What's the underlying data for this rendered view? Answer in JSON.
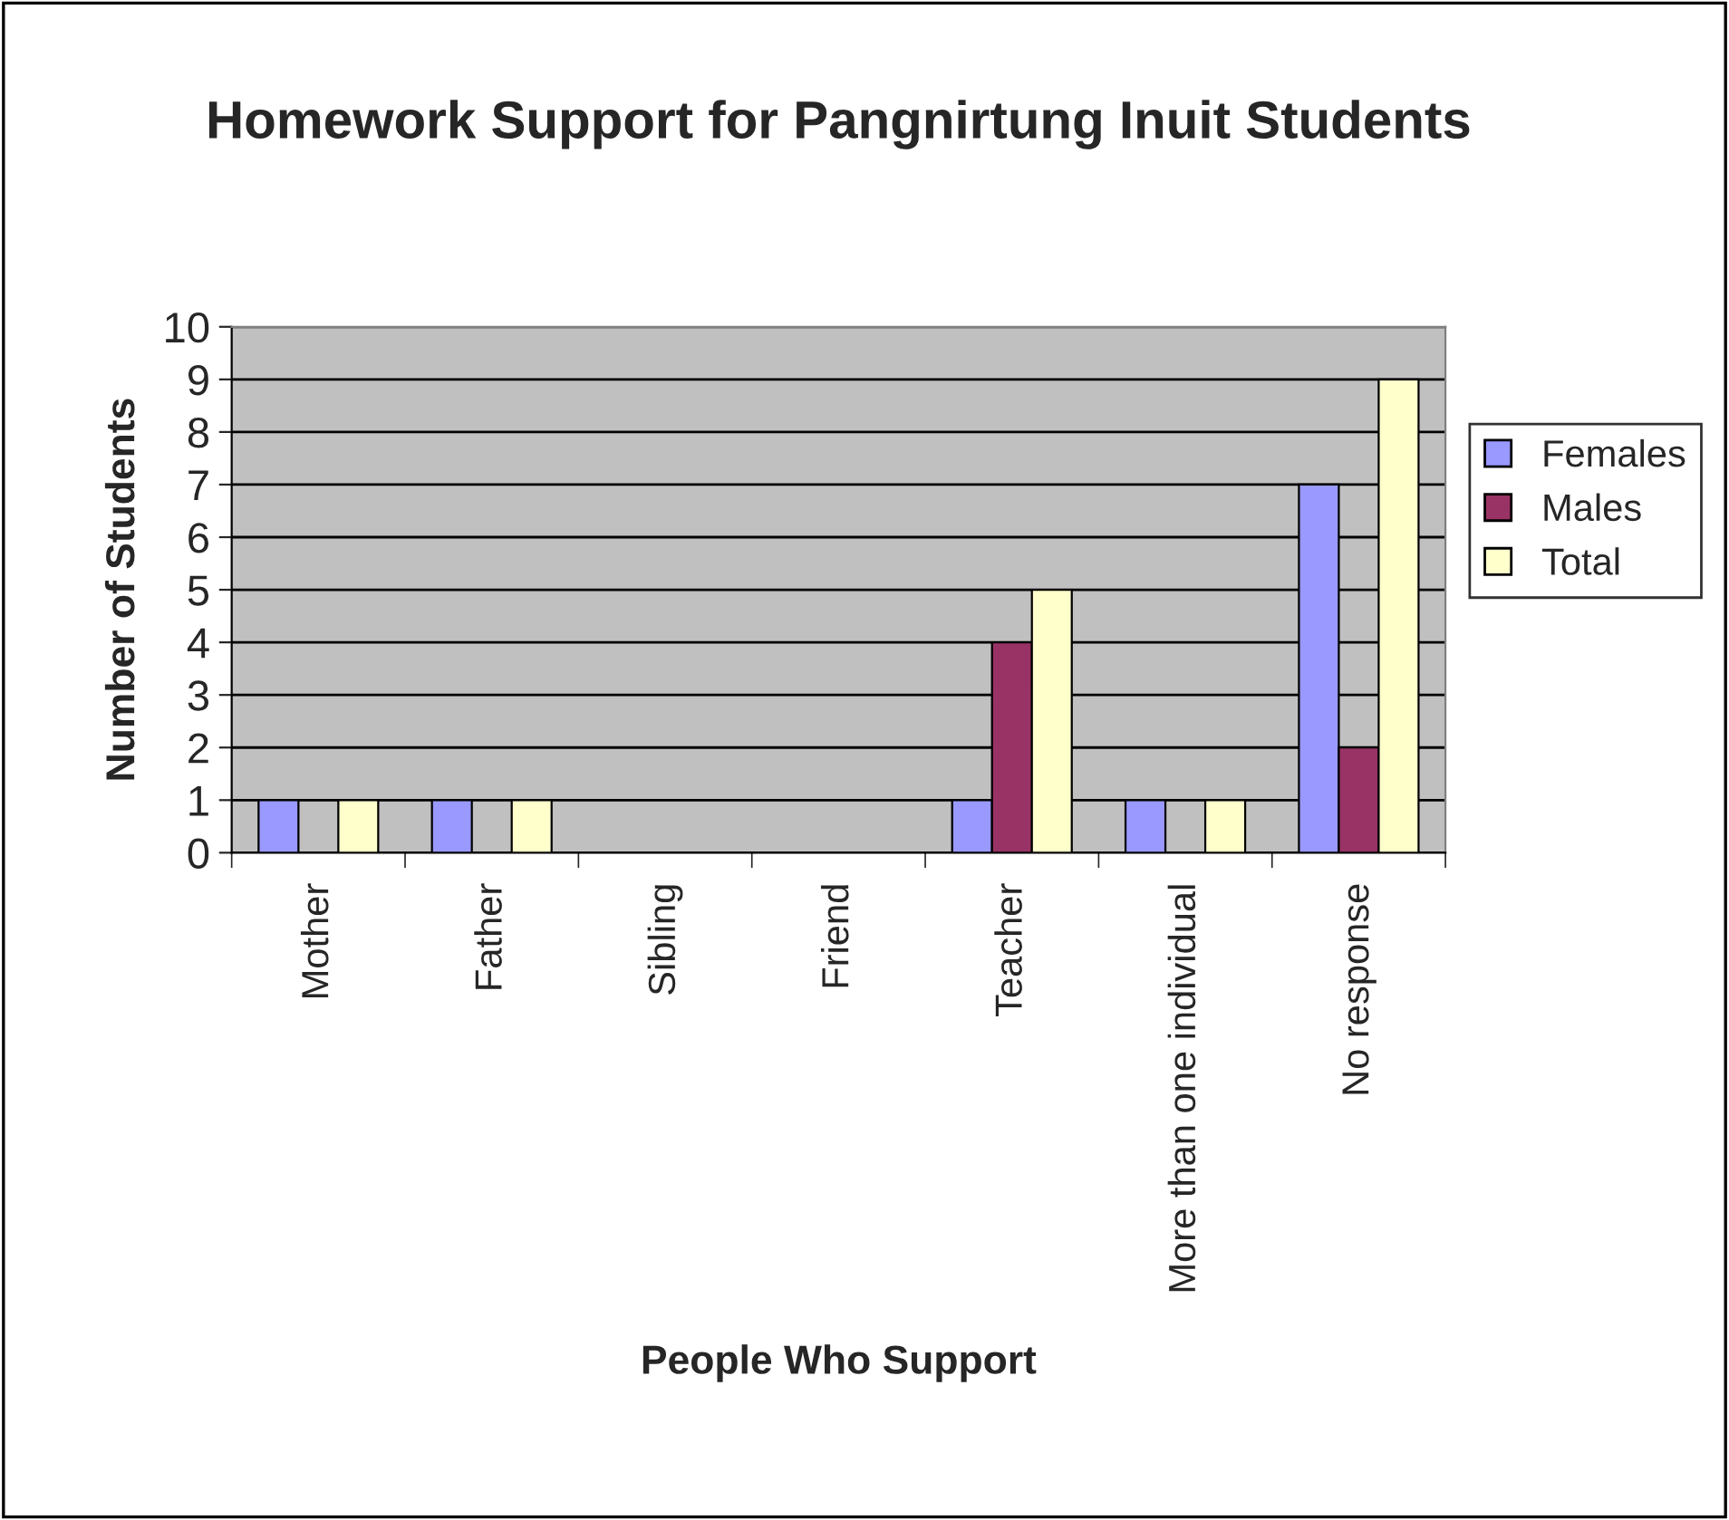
{
  "chart_data": {
    "type": "bar",
    "title": "Homework Support for Pangnirtung Inuit Students",
    "xlabel": "People Who Support",
    "ylabel": "Number of Students",
    "categories": [
      "Mother",
      "Father",
      "Sibling",
      "Friend",
      "Teacher",
      "More than one individual",
      "No response"
    ],
    "series": [
      {
        "name": "Females",
        "color": "#9999ff",
        "values": [
          1,
          1,
          0,
          0,
          1,
          1,
          7
        ]
      },
      {
        "name": "Males",
        "color": "#993366",
        "values": [
          0,
          0,
          0,
          0,
          4,
          0,
          2
        ]
      },
      {
        "name": "Total",
        "color": "#ffffcc",
        "values": [
          1,
          1,
          0,
          0,
          5,
          1,
          9
        ]
      }
    ],
    "ylim": [
      0,
      10
    ],
    "yticks": [
      0,
      1,
      2,
      3,
      4,
      5,
      6,
      7,
      8,
      9,
      10
    ],
    "grid": "y",
    "legend": "right"
  }
}
